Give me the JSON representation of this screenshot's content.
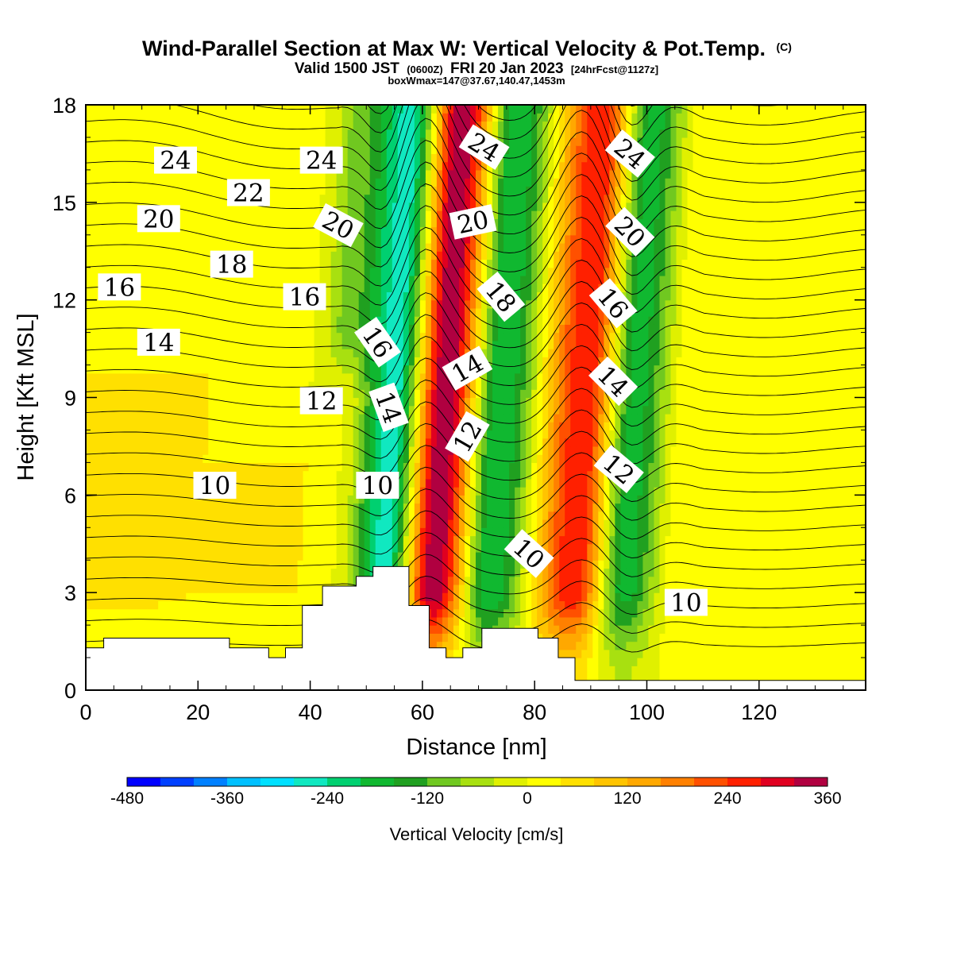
{
  "chart_data": {
    "type": "heatmap",
    "title": "Wind-Parallel Section at Max W: Vertical Velocity & Pot.Temp.",
    "title_mark": "(C)",
    "subtitle_parts": [
      "Valid 1500 JST",
      "(0600Z)",
      "FRI 20 Jan 2023",
      "[24hrFcst@1127z]"
    ],
    "subtitle2": "boxWmax=147@37.67,140.47,1453m",
    "xlabel": "Distance [nm]",
    "ylabel": "Height [Kft MSL]",
    "xlim": [
      0,
      139
    ],
    "ylim": [
      0,
      18
    ],
    "xticks": [
      0,
      20,
      40,
      60,
      80,
      100,
      120
    ],
    "yticks": [
      0,
      3,
      6,
      9,
      12,
      15,
      18
    ],
    "colorbar": {
      "label": "Vertical Velocity [cm/s]",
      "ticks": [
        -480,
        -360,
        -240,
        -120,
        0,
        120,
        240,
        360
      ],
      "min": -480,
      "max": 360,
      "step": 40,
      "colors": [
        "#0000ff",
        "#0040ff",
        "#0080ff",
        "#00c0ff",
        "#00e0ff",
        "#10e8c0",
        "#00d070",
        "#10b830",
        "#20a020",
        "#70c820",
        "#a8e010",
        "#e0f000",
        "#ffff00",
        "#ffe000",
        "#ffc400",
        "#ffa800",
        "#ff8000",
        "#ff5000",
        "#ff2000",
        "#e00020",
        "#b00040",
        "#800060",
        "#500090"
      ]
    },
    "w_columns": [
      {
        "x": 11,
        "w": 60,
        "z0": 3,
        "z1": 9
      },
      {
        "x": 22,
        "w": 40
      },
      {
        "x": 40,
        "w": 40,
        "z0": 3,
        "z1": 7
      },
      {
        "x": 46,
        "w": -100,
        "z0": 11,
        "z1": 18
      },
      {
        "x": 55,
        "w": -260
      },
      {
        "x": 64,
        "w": 360
      },
      {
        "x": 74,
        "w": -200
      },
      {
        "x": 89,
        "w": 280
      },
      {
        "x": 98,
        "w": -180
      },
      {
        "x": 108,
        "w": 40
      },
      {
        "x": 123,
        "w": 30
      }
    ],
    "potential_temperature_labels": [
      {
        "text": "24",
        "x": 16,
        "z": 16.3,
        "rot": 0
      },
      {
        "text": "24",
        "x": 42,
        "z": 16.3,
        "rot": 0
      },
      {
        "text": "24",
        "x": 71,
        "z": 16.7,
        "rot": 32
      },
      {
        "text": "24",
        "x": 97,
        "z": 16.5,
        "rot": 40
      },
      {
        "text": "22",
        "x": 29,
        "z": 15.3,
        "rot": 0
      },
      {
        "text": "20",
        "x": 13,
        "z": 14.5,
        "rot": 0
      },
      {
        "text": "20",
        "x": 45,
        "z": 14.3,
        "rot": 28
      },
      {
        "text": "20",
        "x": 69,
        "z": 14.4,
        "rot": -12
      },
      {
        "text": "20",
        "x": 97,
        "z": 14.1,
        "rot": 45
      },
      {
        "text": "18",
        "x": 26,
        "z": 13.1,
        "rot": 0
      },
      {
        "text": "18",
        "x": 74,
        "z": 12.1,
        "rot": 50
      },
      {
        "text": "16",
        "x": 6,
        "z": 12.4,
        "rot": 0
      },
      {
        "text": "16",
        "x": 39,
        "z": 12.1,
        "rot": 0
      },
      {
        "text": "16",
        "x": 52,
        "z": 10.7,
        "rot": 55
      },
      {
        "text": "16",
        "x": 94,
        "z": 11.9,
        "rot": 50
      },
      {
        "text": "14",
        "x": 13,
        "z": 10.7,
        "rot": 0
      },
      {
        "text": "14",
        "x": 54,
        "z": 8.7,
        "rot": 70
      },
      {
        "text": "14",
        "x": 68,
        "z": 9.9,
        "rot": -30
      },
      {
        "text": "14",
        "x": 94,
        "z": 9.5,
        "rot": 45
      },
      {
        "text": "12",
        "x": 42,
        "z": 8.9,
        "rot": 0
      },
      {
        "text": "12",
        "x": 68,
        "z": 7.8,
        "rot": -60
      },
      {
        "text": "12",
        "x": 95,
        "z": 6.8,
        "rot": 40
      },
      {
        "text": "10",
        "x": 23,
        "z": 6.3,
        "rot": 0
      },
      {
        "text": "10",
        "x": 52,
        "z": 6.3,
        "rot": 0
      },
      {
        "text": "10",
        "x": 79,
        "z": 4.2,
        "rot": 42
      },
      {
        "text": "10",
        "x": 107,
        "z": 2.7,
        "rot": 0
      }
    ],
    "terrain": [
      [
        0,
        1.3
      ],
      [
        3.2,
        1.3
      ],
      [
        3.2,
        1.6
      ],
      [
        25.6,
        1.6
      ],
      [
        25.6,
        1.3
      ],
      [
        32.6,
        1.3
      ],
      [
        32.6,
        1.0
      ],
      [
        35.6,
        1.0
      ],
      [
        35.6,
        1.3
      ],
      [
        38.6,
        1.3
      ],
      [
        38.6,
        2.6
      ],
      [
        42.2,
        2.6
      ],
      [
        42.2,
        3.2
      ],
      [
        48.2,
        3.2
      ],
      [
        48.2,
        3.5
      ],
      [
        51.2,
        3.5
      ],
      [
        51.2,
        3.8
      ],
      [
        57.6,
        3.8
      ],
      [
        57.6,
        2.6
      ],
      [
        61.2,
        2.6
      ],
      [
        61.2,
        1.3
      ],
      [
        64.2,
        1.3
      ],
      [
        64.2,
        1.0
      ],
      [
        67.2,
        1.0
      ],
      [
        67.2,
        1.3
      ],
      [
        70.6,
        1.3
      ],
      [
        70.6,
        1.9
      ],
      [
        80.6,
        1.9
      ],
      [
        80.6,
        1.6
      ],
      [
        84.2,
        1.6
      ],
      [
        84.2,
        1.0
      ],
      [
        87.2,
        1.0
      ],
      [
        87.2,
        0.3
      ],
      [
        139,
        0.3
      ]
    ]
  }
}
